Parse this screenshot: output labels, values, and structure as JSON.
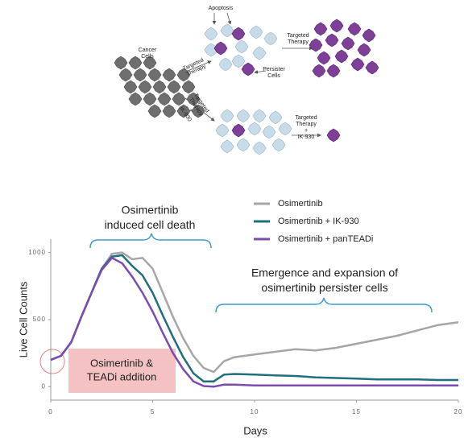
{
  "diagram": {
    "apoptosis": "Apoptosis",
    "cancer_cells": [
      "Cancer",
      "Cells"
    ],
    "therapy_top": [
      "Targeted",
      "Therapy"
    ],
    "persister": [
      "Persister",
      "Cells"
    ],
    "therapy_right": [
      "Targeted",
      "Therapy"
    ],
    "therapy_ik_left": [
      "Targeted",
      "Therapy",
      "+",
      "IK-930"
    ],
    "therapy_ik_right": [
      "Targeted",
      "Therapy",
      "+",
      "IK-930"
    ]
  },
  "chart_data": {
    "type": "line",
    "xlabel": "Days",
    "ylabel": "Live Cell Counts",
    "x": [
      0,
      0.5,
      1,
      1.5,
      2,
      2.5,
      3,
      3.5,
      4,
      4.5,
      5,
      5.5,
      6,
      6.5,
      7,
      7.5,
      8,
      8.5,
      9,
      10,
      11,
      12,
      13,
      14,
      15,
      16,
      17,
      18,
      19,
      20
    ],
    "series": [
      {
        "name": "Osimertinib",
        "color": "#a6a6a6",
        "values": [
          200,
          230,
          330,
          520,
          700,
          880,
          990,
          1000,
          950,
          960,
          880,
          700,
          520,
          360,
          230,
          140,
          110,
          190,
          220,
          240,
          260,
          280,
          270,
          290,
          320,
          350,
          380,
          420,
          460,
          480
        ]
      },
      {
        "name": "Osimertinib + IK-930",
        "color": "#1f6f7f",
        "values": [
          200,
          230,
          330,
          520,
          700,
          880,
          970,
          980,
          900,
          830,
          700,
          530,
          370,
          220,
          100,
          40,
          40,
          90,
          95,
          90,
          85,
          80,
          70,
          65,
          60,
          55,
          55,
          55,
          50,
          50
        ]
      },
      {
        "name": "Osimertinib + panTEADi",
        "color": "#7b4bb0",
        "values": [
          200,
          230,
          330,
          520,
          700,
          870,
          960,
          920,
          820,
          700,
          560,
          400,
          250,
          130,
          40,
          5,
          0,
          15,
          15,
          10,
          10,
          10,
          10,
          10,
          10,
          10,
          10,
          10,
          10,
          10
        ]
      }
    ],
    "xlim": [
      0,
      20
    ],
    "ylim": [
      -100,
      1100
    ],
    "xticks": [
      0,
      5,
      10,
      15,
      20
    ],
    "yticks": [
      0,
      500,
      1000
    ],
    "annotations": {
      "death": [
        "Osimertinib",
        "induced cell death"
      ],
      "emergence": [
        "Emergence and expansion of",
        "osimertinib persister cells"
      ],
      "addition": [
        "Osimertinib &",
        "TEADi addition"
      ]
    }
  }
}
